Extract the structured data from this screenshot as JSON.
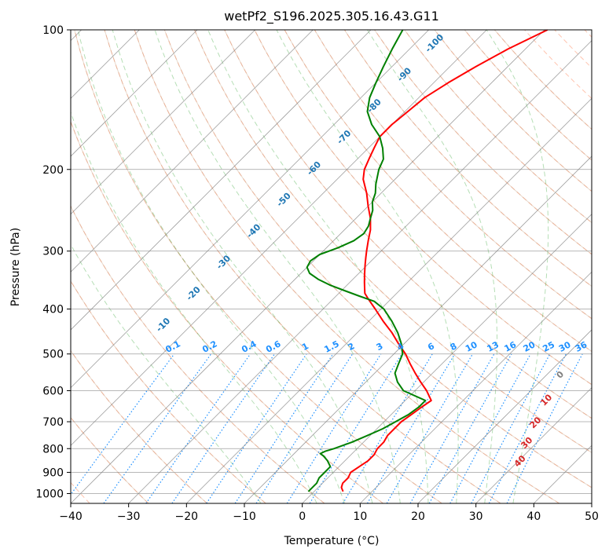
{
  "chart_data": {
    "type": "line",
    "title": "wetPf2_S196.2025.305.16.43.G11",
    "xlabel": "Temperature (°C)",
    "ylabel": "Pressure (hPa)",
    "xlim": [
      -40,
      50
    ],
    "ylim_hpa": [
      1050,
      100
    ],
    "log_pressure_axis": true,
    "x_ticks": [
      -40,
      -30,
      -20,
      -10,
      0,
      10,
      20,
      30,
      40,
      50
    ],
    "y_ticks": [
      100,
      200,
      300,
      400,
      500,
      600,
      700,
      800,
      900,
      1000
    ],
    "grid": true,
    "reference_lines": {
      "dry_adiabats_C": [
        -30,
        -20,
        -10,
        0,
        10,
        20,
        30,
        40,
        50,
        60,
        70,
        80,
        90,
        100,
        110,
        120,
        130,
        140,
        150,
        160
      ],
      "moist_adiabats_C": [
        -10,
        0,
        5,
        10,
        15,
        20,
        25,
        30,
        35
      ],
      "mixing_ratio_labels": [
        "0.1",
        "0.2",
        "0.4",
        "0.6",
        "1",
        "1.5",
        "2",
        "3",
        "4",
        "6",
        "8",
        "10",
        "13",
        "16",
        "20",
        "25",
        "30",
        "36"
      ],
      "mixing_ratio_gkg": [
        0.1,
        0.2,
        0.4,
        0.6,
        1,
        1.5,
        2,
        3,
        4,
        6,
        8,
        10,
        13,
        16,
        20,
        25,
        30,
        36
      ],
      "mixing_ratio_label_pressure_hpa": 500,
      "theta_e_labels": [
        "-100",
        "-90",
        "-80",
        "-70",
        "-60",
        "-50",
        "-40",
        "-30",
        "-20",
        "-10",
        "0",
        "10",
        "20",
        "30",
        "40"
      ]
    },
    "series": [
      {
        "color": "#ff0000",
        "pressure_hpa": [
          990,
          970,
          950,
          925,
          900,
          875,
          850,
          825,
          800,
          775,
          750,
          725,
          700,
          675,
          650,
          630,
          600,
          575,
          550,
          525,
          500,
          475,
          450,
          425,
          400,
          380,
          370,
          360,
          350,
          340,
          330,
          320,
          310,
          300,
          285,
          270,
          255,
          240,
          225,
          210,
          200,
          190,
          180,
          170,
          160,
          150,
          140,
          130,
          120,
          110,
          100
        ],
        "temperature_c": [
          5.0,
          4.0,
          3.5,
          3.5,
          3.0,
          3.5,
          4.0,
          4.0,
          3.5,
          3.5,
          3.0,
          3.0,
          3.0,
          3.5,
          4.0,
          4.5,
          2.0,
          -0.5,
          -3.0,
          -5.5,
          -8.0,
          -11.0,
          -14.0,
          -17.5,
          -21.0,
          -24.0,
          -25.5,
          -26.5,
          -27.5,
          -28.5,
          -29.5,
          -30.5,
          -31.5,
          -32.5,
          -34.0,
          -35.5,
          -37.5,
          -40.0,
          -42.5,
          -45.5,
          -47.0,
          -48.0,
          -49.0,
          -50.0,
          -50.0,
          -49.5,
          -49.0,
          -47.5,
          -45.5,
          -43.0,
          -39.5
        ]
      },
      {
        "color": "#008000",
        "pressure_hpa": [
          990,
          970,
          950,
          925,
          900,
          875,
          850,
          830,
          820,
          810,
          800,
          775,
          750,
          725,
          700,
          675,
          650,
          630,
          600,
          575,
          550,
          525,
          500,
          475,
          450,
          425,
          400,
          385,
          375,
          365,
          355,
          345,
          335,
          325,
          315,
          305,
          295,
          285,
          275,
          265,
          255,
          245,
          235,
          225,
          215,
          200,
          190,
          180,
          170,
          160,
          150,
          140,
          130,
          120,
          110,
          100
        ],
        "temperature_c": [
          -1.0,
          -1.0,
          -1.0,
          -1.5,
          -1.5,
          -1.5,
          -3.0,
          -4.5,
          -5.5,
          -5.0,
          -4.0,
          -2.0,
          -0.5,
          1.0,
          2.0,
          3.0,
          3.5,
          3.5,
          -2.0,
          -4.5,
          -6.5,
          -7.5,
          -8.5,
          -10.5,
          -13.0,
          -16.0,
          -19.5,
          -22.5,
          -26.0,
          -29.5,
          -33.0,
          -36.0,
          -38.5,
          -40.0,
          -40.5,
          -40.0,
          -38.0,
          -36.5,
          -36.0,
          -36.5,
          -37.5,
          -38.5,
          -40.0,
          -41.0,
          -42.5,
          -44.5,
          -45.5,
          -47.5,
          -50.0,
          -53.5,
          -56.5,
          -58.5,
          -60.0,
          -61.5,
          -63.0,
          -64.5
        ]
      }
    ]
  }
}
